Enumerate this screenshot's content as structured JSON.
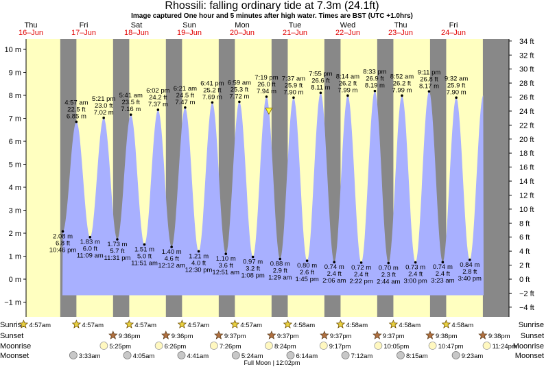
{
  "header": {
    "title": "Rhossili: falling  ordinary tide at 7.3m (24.1ft)",
    "subtitle": "Image captured One hour and 5 minutes after high water. Times are BST (UTC +1.0hrs)"
  },
  "colors": {
    "day": "#ffffc0",
    "night": "#888888",
    "tide_fill": "#a8b0ff",
    "weekday_text": "#000000",
    "date_text": "#e00000",
    "marker": "#ffff40"
  },
  "chart_data": {
    "type": "area",
    "ylim_m": [
      -1.4,
      10.6
    ],
    "ylim_ft": [
      -4,
      34
    ],
    "y_ticks_m": [
      "10 m",
      "9 m",
      "8 m",
      "7 m",
      "6 m",
      "5 m",
      "4 m",
      "3 m",
      "2 m",
      "1 m",
      "0 m",
      "−1 m"
    ],
    "y_ticks_ft": [
      "34 ft",
      "32 ft",
      "30 ft",
      "28 ft",
      "26 ft",
      "24 ft",
      "22 ft",
      "20 ft",
      "18 ft",
      "16 ft",
      "14 ft",
      "12 ft",
      "10 ft",
      "8 ft",
      "6 ft",
      "4 ft",
      "2 ft",
      "0 ft",
      "−2 ft",
      "−4 ft"
    ],
    "days": [
      {
        "weekday": "Thu",
        "date": "16–Jun"
      },
      {
        "weekday": "Fri",
        "date": "17–Jun"
      },
      {
        "weekday": "Sat",
        "date": "18–Jun"
      },
      {
        "weekday": "Sun",
        "date": "19–Jun"
      },
      {
        "weekday": "Mon",
        "date": "20–Jun"
      },
      {
        "weekday": "Tue",
        "date": "21–Jun"
      },
      {
        "weekday": "Wed",
        "date": "22–Jun"
      },
      {
        "weekday": "Thu",
        "date": "23–Jun"
      },
      {
        "weekday": "Fri",
        "date": "24–Jun"
      }
    ],
    "extremes": [
      {
        "kind": "low",
        "day": 0,
        "time": "10:46 pm",
        "m": "2.08 m",
        "ft": "6.8 ft",
        "value": 2.08
      },
      {
        "kind": "high",
        "day": 1,
        "time": "4:57 am",
        "m": "6.85 m",
        "ft": "22.5 ft",
        "value": 6.85
      },
      {
        "kind": "low",
        "day": 1,
        "time": "11:09 am",
        "m": "1.83 m",
        "ft": "6.0 ft",
        "value": 1.83
      },
      {
        "kind": "high",
        "day": 1,
        "time": "5:21 pm",
        "m": "7.02 m",
        "ft": "23.0 ft",
        "value": 7.02
      },
      {
        "kind": "low",
        "day": 1,
        "time": "11:31 pm",
        "m": "1.73 m",
        "ft": "5.7 ft",
        "value": 1.73
      },
      {
        "kind": "high",
        "day": 2,
        "time": "5:41 am",
        "m": "7.16 m",
        "ft": "23.5 ft",
        "value": 7.16
      },
      {
        "kind": "low",
        "day": 2,
        "time": "11:51 am",
        "m": "1.51 m",
        "ft": "5.0 ft",
        "value": 1.51
      },
      {
        "kind": "high",
        "day": 2,
        "time": "6:02 pm",
        "m": "7.37 m",
        "ft": "24.2 ft",
        "value": 7.37
      },
      {
        "kind": "low",
        "day": 3,
        "time": "12:12 am",
        "m": "1.40 m",
        "ft": "4.6 ft",
        "value": 1.4
      },
      {
        "kind": "high",
        "day": 3,
        "time": "6:21 am",
        "m": "7.47 m",
        "ft": "24.5 ft",
        "value": 7.47
      },
      {
        "kind": "low",
        "day": 3,
        "time": "12:30 pm",
        "m": "1.21 m",
        "ft": "4.0 ft",
        "value": 1.21
      },
      {
        "kind": "high",
        "day": 3,
        "time": "6:41 pm",
        "m": "7.69 m",
        "ft": "25.2 ft",
        "value": 7.69
      },
      {
        "kind": "low",
        "day": 4,
        "time": "12:51 am",
        "m": "1.10 m",
        "ft": "3.6 ft",
        "value": 1.1
      },
      {
        "kind": "high",
        "day": 4,
        "time": "6:59 am",
        "m": "7.72 m",
        "ft": "25.3 ft",
        "value": 7.72
      },
      {
        "kind": "low",
        "day": 4,
        "time": "1:08 pm",
        "m": "0.97 m",
        "ft": "3.2 ft",
        "value": 0.97
      },
      {
        "kind": "high",
        "day": 4,
        "time": "7:19 pm",
        "m": "7.94 m",
        "ft": "26.0 ft",
        "value": 7.94
      },
      {
        "kind": "low",
        "day": 5,
        "time": "1:29 am",
        "m": "0.88 m",
        "ft": "2.9 ft",
        "value": 0.88
      },
      {
        "kind": "high",
        "day": 5,
        "time": "7:37 am",
        "m": "7.90 m",
        "ft": "25.9 ft",
        "value": 7.9
      },
      {
        "kind": "low",
        "day": 5,
        "time": "1:45 pm",
        "m": "0.80 m",
        "ft": "2.6 ft",
        "value": 0.8
      },
      {
        "kind": "high",
        "day": 5,
        "time": "7:55 pm",
        "m": "8.11 m",
        "ft": "26.6 ft",
        "value": 8.11
      },
      {
        "kind": "low",
        "day": 6,
        "time": "2:06 am",
        "m": "0.74 m",
        "ft": "2.4 ft",
        "value": 0.74
      },
      {
        "kind": "high",
        "day": 6,
        "time": "8:14 am",
        "m": "7.99 m",
        "ft": "26.2 ft",
        "value": 7.99
      },
      {
        "kind": "low",
        "day": 6,
        "time": "2:22 pm",
        "m": "0.72 m",
        "ft": "2.4 ft",
        "value": 0.72
      },
      {
        "kind": "high",
        "day": 6,
        "time": "8:33 pm",
        "m": "8.19 m",
        "ft": "26.9 ft",
        "value": 8.19
      },
      {
        "kind": "low",
        "day": 7,
        "time": "2:44 am",
        "m": "0.70 m",
        "ft": "2.3 ft",
        "value": 0.7
      },
      {
        "kind": "high",
        "day": 7,
        "time": "8:52 am",
        "m": "7.99 m",
        "ft": "26.2 ft",
        "value": 7.99
      },
      {
        "kind": "low",
        "day": 7,
        "time": "3:00 pm",
        "m": "0.73 m",
        "ft": "2.4 ft",
        "value": 0.73
      },
      {
        "kind": "high",
        "day": 7,
        "time": "9:11 pm",
        "m": "8.17 m",
        "ft": "26.8 ft",
        "value": 8.17
      },
      {
        "kind": "low",
        "day": 8,
        "time": "3:23 am",
        "m": "0.74 m",
        "ft": "2.4 ft",
        "value": 0.74
      },
      {
        "kind": "high",
        "day": 8,
        "time": "9:32 am",
        "m": "7.90 m",
        "ft": "25.9 ft",
        "value": 7.9
      },
      {
        "kind": "low",
        "day": 8,
        "time": "3:40 pm",
        "m": "0.84 m",
        "ft": "2.8 ft",
        "value": 0.84
      }
    ],
    "current": {
      "time_of_day": "8:24 pm",
      "day": 4,
      "value": 7.3
    }
  },
  "astro": {
    "labels": {
      "sunrise": "Sunrise",
      "sunset": "Sunset",
      "moonrise": "Moonrise",
      "moonset": "Moonset"
    },
    "sunrise": [
      "4:57am",
      "4:57am",
      "4:57am",
      "4:57am",
      "4:57am",
      "4:58am",
      "4:58am",
      "4:58am",
      "4:58am"
    ],
    "sunset": [
      "9:36pm",
      "9:36pm",
      "9:37pm",
      "9:37pm",
      "9:37pm",
      "9:37pm",
      "9:38pm",
      "9:38pm"
    ],
    "moonrise": [
      "5:25pm",
      "6:26pm",
      "7:26pm",
      "8:24pm",
      "9:17pm",
      "10:05pm",
      "10:47pm",
      "11:24pm"
    ],
    "moonset": [
      "3:33am",
      "4:05am",
      "4:41am",
      "5:24am",
      "6:14am",
      "7:12am",
      "8:15am",
      "9:23am"
    ],
    "full_moon": "Full Moon | 12:02pm"
  }
}
